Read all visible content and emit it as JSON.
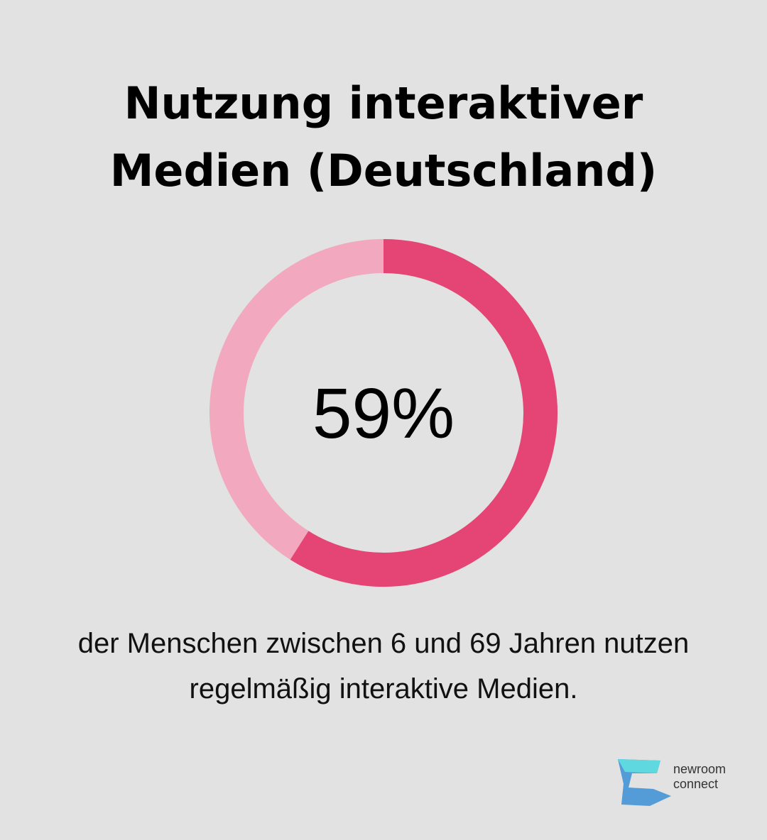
{
  "chart_data": {
    "type": "donut",
    "title": "Nutzung interaktiver Medien (Deutschland)",
    "values": [
      59
    ],
    "value_labels": [
      "59%"
    ],
    "color": "#e44574",
    "track_color": "#f2a8bf",
    "caption": "der Menschen zwischen 6 und 69 Jahren nutzen regelmäßig interaktive Medien."
  },
  "logo": {
    "line1": "newroom",
    "line2": "connect"
  }
}
